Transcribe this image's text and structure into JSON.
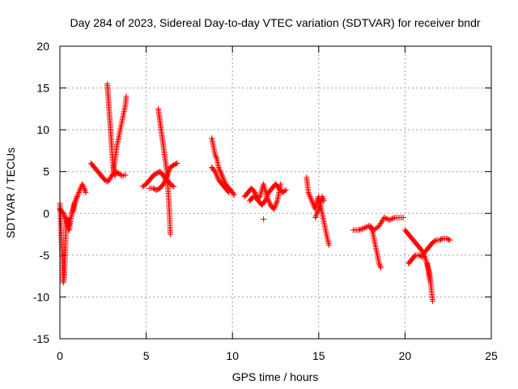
{
  "chart_data": {
    "type": "scatter",
    "title": "Day 284 of 2023, Sidereal Day-to-day VTEC variation (SDTVAR) for receiver bndr",
    "xlabel": "GPS time / hours",
    "ylabel": "SDTVAR / TECUs",
    "xlim": [
      0,
      25
    ],
    "ylim": [
      -15,
      20
    ],
    "xticks": [
      0,
      5,
      10,
      15,
      20,
      25
    ],
    "yticks": [
      -15,
      -10,
      -5,
      0,
      5,
      10,
      15,
      20
    ],
    "grid": true,
    "marker": "+",
    "color": "#ff0000",
    "segments": [
      {
        "x": [
          0.0,
          0.05,
          0.1,
          0.15,
          0.2,
          0.25,
          0.3,
          0.35,
          0.4,
          0.45,
          0.5,
          0.55,
          0.6,
          0.7,
          0.8,
          0.9,
          1.0,
          1.1,
          1.2,
          1.3,
          1.4,
          1.5
        ],
        "y": [
          1.2,
          -1.0,
          -3.5,
          -6.0,
          -8.3,
          -7.5,
          -5.5,
          -2.0,
          -0.5,
          -1.5,
          -2.0,
          -2.0,
          -1.0,
          0.0,
          0.5,
          1.5,
          2.0,
          2.5,
          3.0,
          3.5,
          3.0,
          2.5
        ]
      },
      {
        "x": [
          0.0,
          0.1,
          0.2,
          0.3,
          0.4,
          0.5,
          0.6,
          0.7,
          0.8,
          0.9,
          1.0
        ],
        "y": [
          0.5,
          0.3,
          0.0,
          -0.5,
          -1.0,
          -1.5,
          -1.0,
          0.0,
          1.0,
          1.5,
          2.0
        ]
      },
      {
        "x": [
          1.8,
          2.0,
          2.2,
          2.4,
          2.6,
          2.8,
          3.0,
          3.2,
          3.4,
          3.6,
          3.8
        ],
        "y": [
          6.0,
          5.5,
          5.0,
          4.5,
          4.0,
          3.8,
          4.5,
          5.0,
          4.8,
          4.5,
          4.6
        ]
      },
      {
        "x": [
          2.75,
          2.8,
          2.85,
          2.9,
          2.95,
          3.0,
          3.05,
          3.1,
          3.15,
          3.2
        ],
        "y": [
          15.5,
          14.0,
          12.5,
          11.0,
          9.5,
          8.0,
          6.5,
          5.5,
          4.8,
          4.5
        ]
      },
      {
        "x": [
          3.1,
          3.2,
          3.3,
          3.4,
          3.5,
          3.6,
          3.7,
          3.8,
          3.85
        ],
        "y": [
          5.0,
          6.5,
          8.0,
          9.0,
          10.0,
          11.0,
          12.0,
          13.0,
          14.0
        ]
      },
      {
        "x": [
          4.8,
          5.0,
          5.2,
          5.4,
          5.6,
          5.8,
          6.0,
          6.2,
          6.4,
          6.6
        ],
        "y": [
          3.2,
          3.5,
          4.0,
          4.5,
          4.8,
          5.0,
          4.5,
          4.0,
          3.5,
          3.2
        ]
      },
      {
        "x": [
          5.2,
          5.4,
          5.6,
          5.8,
          6.0,
          6.2,
          6.4,
          6.6,
          6.8
        ],
        "y": [
          3.0,
          3.0,
          2.8,
          3.0,
          3.5,
          4.5,
          5.5,
          5.8,
          6.0
        ]
      },
      {
        "x": [
          5.7,
          5.8,
          5.9,
          6.0,
          6.1,
          6.2,
          6.3,
          6.35,
          6.4
        ],
        "y": [
          12.5,
          11.0,
          9.5,
          8.0,
          6.5,
          5.0,
          2.0,
          0.0,
          -2.5
        ]
      },
      {
        "x": [
          8.8,
          8.9,
          9.0,
          9.1,
          9.2,
          9.3,
          9.4,
          9.5,
          9.6,
          9.8,
          10.0,
          10.1
        ],
        "y": [
          9.0,
          8.0,
          7.0,
          6.5,
          5.5,
          5.0,
          4.5,
          4.0,
          3.5,
          3.0,
          2.5,
          2.2
        ]
      },
      {
        "x": [
          8.8,
          9.0,
          9.2,
          9.4,
          9.6,
          9.8
        ],
        "y": [
          5.5,
          5.0,
          4.0,
          3.5,
          3.0,
          2.5
        ]
      },
      {
        "x": [
          10.7,
          10.9,
          11.1,
          11.3,
          11.5,
          11.7,
          11.9,
          12.1,
          12.3,
          12.5,
          12.7,
          12.9,
          13.1
        ],
        "y": [
          2.0,
          2.5,
          3.0,
          2.5,
          1.5,
          1.0,
          1.5,
          2.5,
          3.0,
          3.5,
          3.0,
          2.5,
          2.8
        ]
      },
      {
        "x": [
          11.0,
          11.2,
          11.4,
          11.6,
          11.8,
          12.0,
          12.2,
          12.4,
          12.6,
          12.8
        ],
        "y": [
          1.5,
          2.0,
          1.8,
          2.0,
          3.5,
          2.0,
          1.0,
          0.5,
          1.5,
          3.5
        ]
      },
      {
        "x": [
          11.8
        ],
        "y": [
          -0.7
        ]
      },
      {
        "x": [
          14.3,
          14.4,
          14.5,
          14.6,
          14.7,
          14.8,
          14.9,
          15.0,
          15.1,
          15.2,
          15.3,
          15.4,
          15.5,
          15.6
        ],
        "y": [
          4.3,
          2.5,
          2.0,
          1.5,
          1.0,
          0.5,
          1.5,
          2.0,
          1.0,
          0.0,
          -1.0,
          -2.0,
          -3.0,
          -3.8
        ]
      },
      {
        "x": [
          14.8,
          14.9,
          15.0,
          15.1,
          15.2,
          15.3
        ],
        "y": [
          -0.5,
          0.0,
          0.5,
          1.0,
          2.0,
          1.5
        ]
      },
      {
        "x": [
          17.0,
          17.3,
          17.6,
          17.9,
          18.2,
          18.5,
          18.8,
          19.1,
          19.4,
          19.7,
          19.9
        ],
        "y": [
          -2.0,
          -2.0,
          -1.8,
          -1.5,
          -2.0,
          -1.5,
          -0.5,
          -0.8,
          -0.5,
          -0.5,
          -0.5
        ]
      },
      {
        "x": [
          18.0,
          18.1,
          18.2,
          18.3,
          18.4,
          18.5,
          18.6
        ],
        "y": [
          -1.5,
          -2.0,
          -3.0,
          -4.0,
          -5.0,
          -6.0,
          -6.5
        ]
      },
      {
        "x": [
          20.0,
          20.2,
          20.4,
          20.6,
          20.8,
          21.0,
          21.2,
          21.4,
          21.5
        ],
        "y": [
          -2.0,
          -2.5,
          -3.0,
          -3.5,
          -4.0,
          -4.5,
          -5.5,
          -7.0,
          -8.5
        ]
      },
      {
        "x": [
          20.2,
          20.4,
          20.6,
          20.8,
          21.0,
          21.2,
          21.4,
          21.6,
          21.8,
          22.0,
          22.2,
          22.4,
          22.6
        ],
        "y": [
          -6.0,
          -5.5,
          -5.0,
          -5.0,
          -5.2,
          -4.5,
          -4.0,
          -3.5,
          -3.2,
          -3.2,
          -3.0,
          -3.0,
          -3.2
        ]
      },
      {
        "x": [
          21.3,
          21.4,
          21.5,
          21.55,
          21.6
        ],
        "y": [
          -6.0,
          -7.5,
          -8.5,
          -9.5,
          -10.5
        ]
      }
    ]
  }
}
